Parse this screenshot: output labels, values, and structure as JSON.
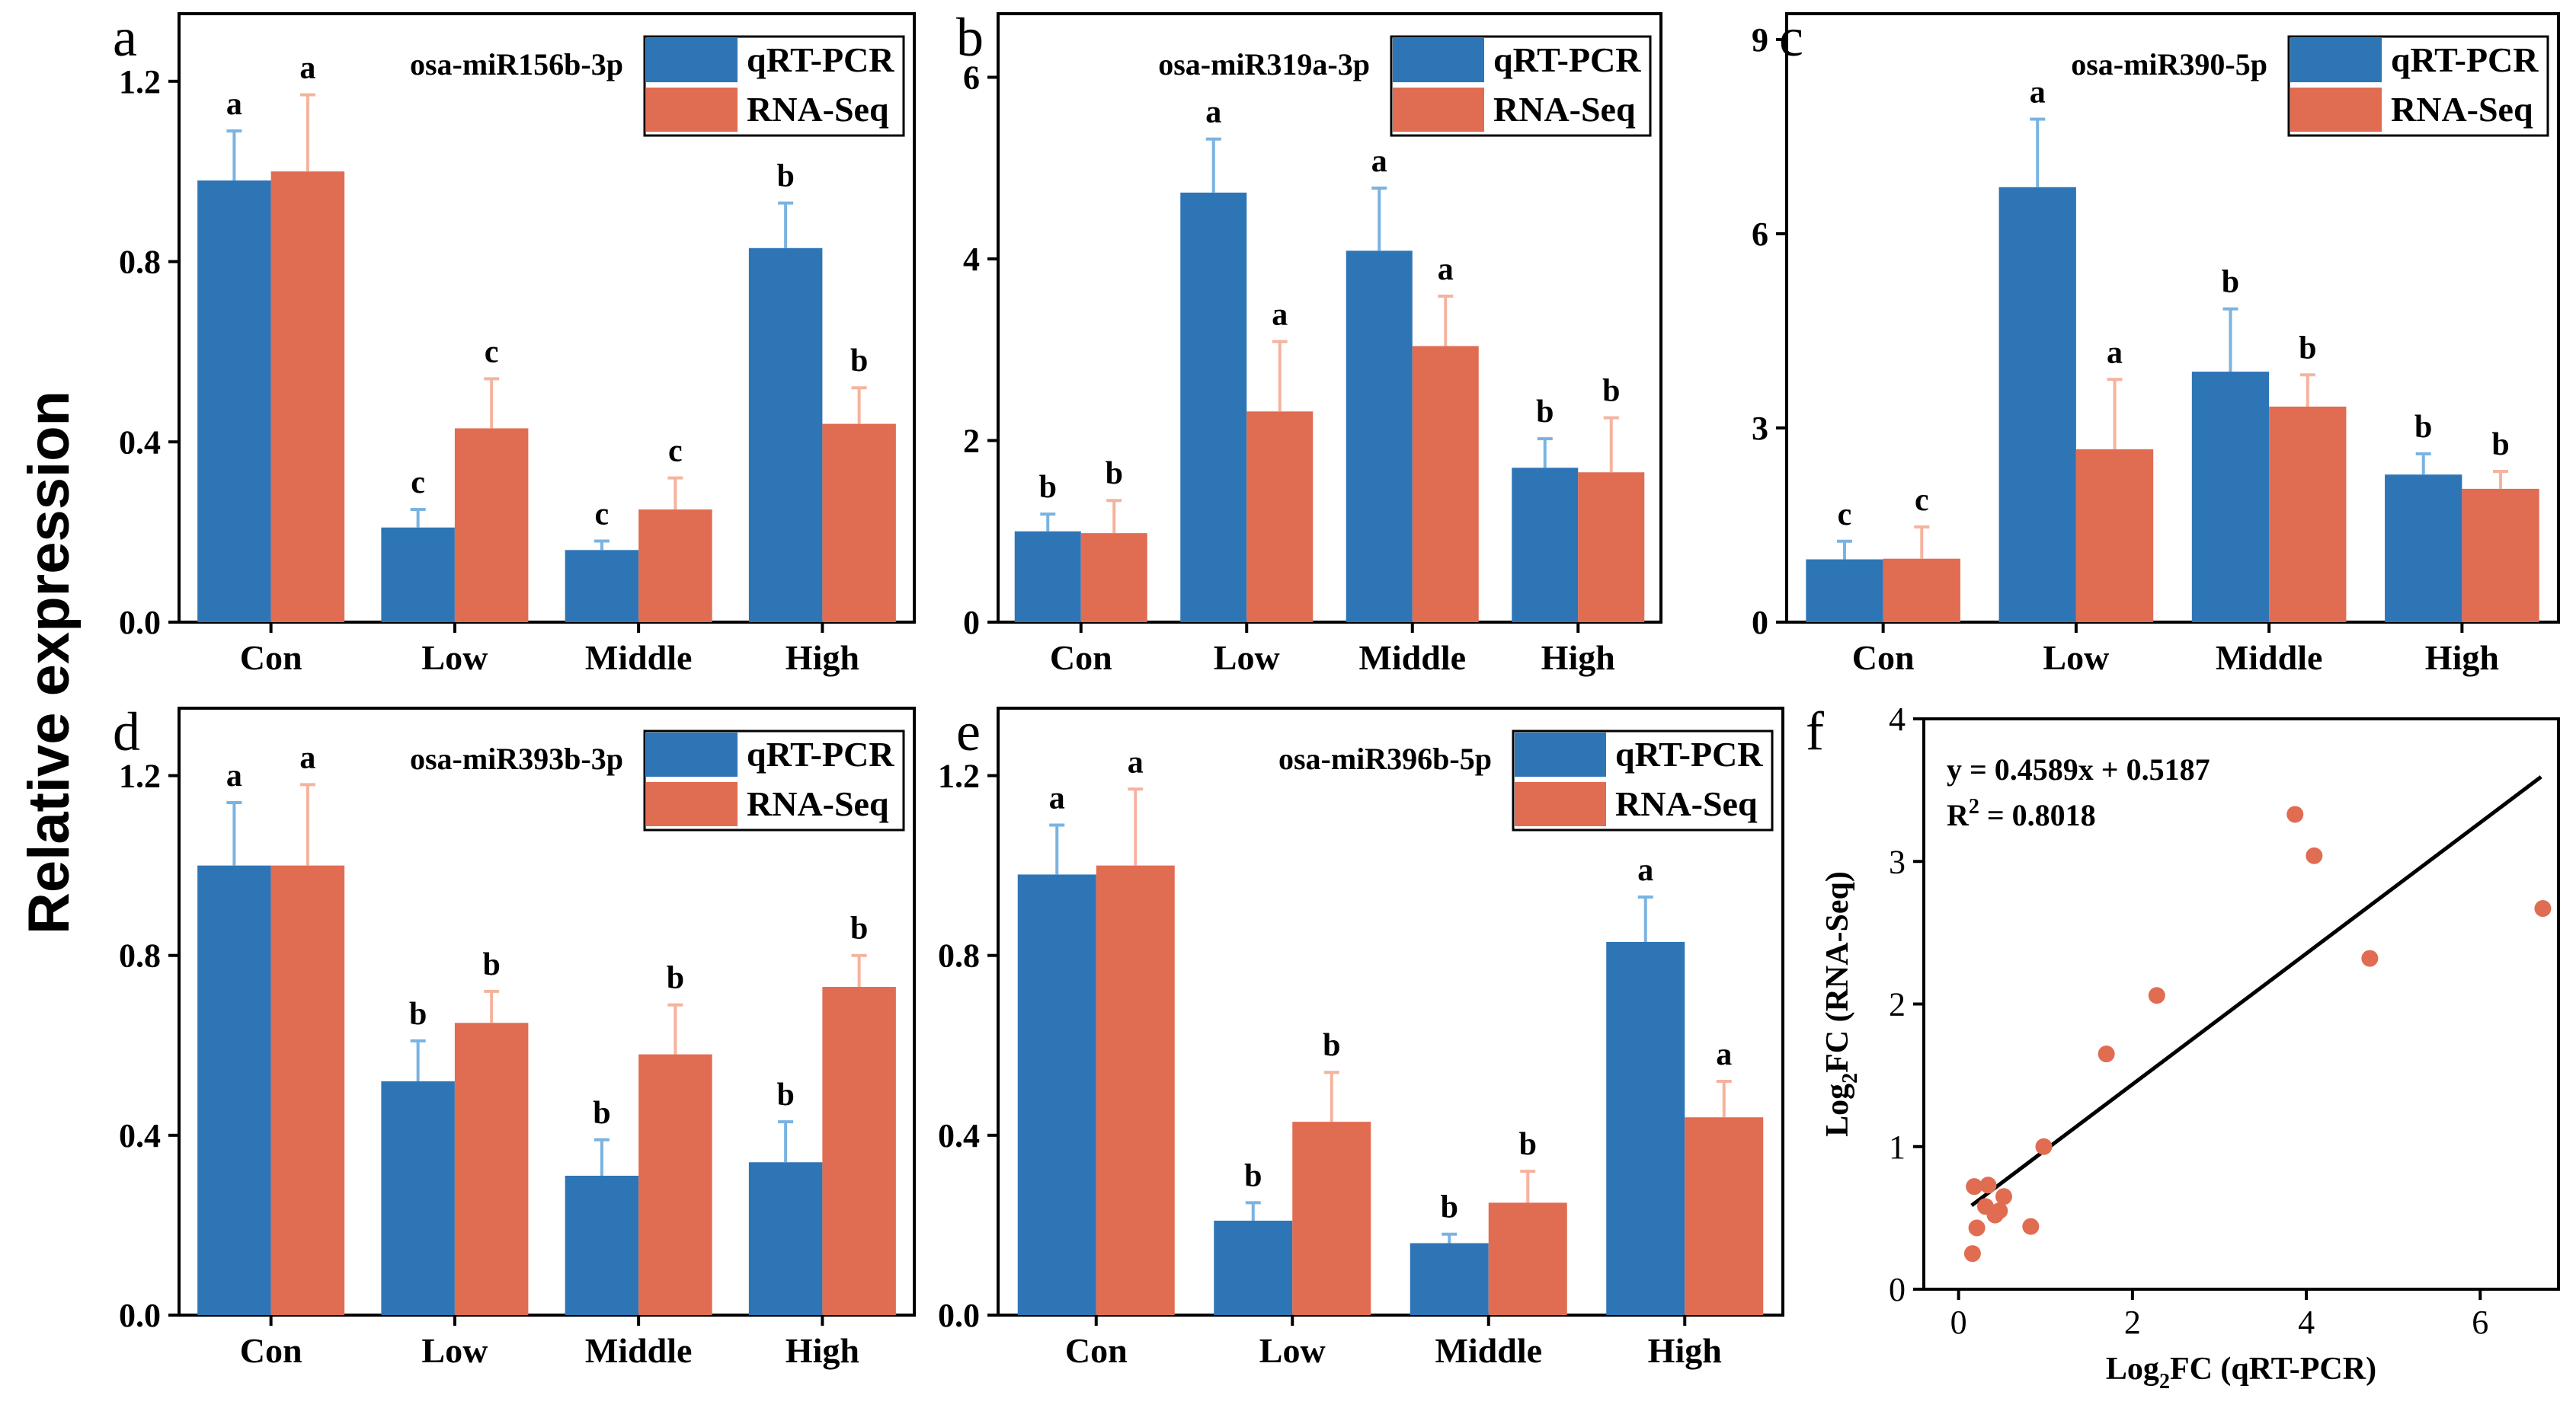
{
  "figure": {
    "ylabel": "Relative expression",
    "colors": {
      "qrt": "#2E75B6",
      "rna": "#E06C52",
      "qrt_err": "#7AB3E0",
      "rna_err": "#F5B39E",
      "axis": "#000000"
    }
  },
  "chart_data": [
    {
      "id": "a",
      "type": "bar",
      "panel_label": "a",
      "title": "osa-miR156b-3p",
      "categories": [
        "Con",
        "Low",
        "Middle",
        "High"
      ],
      "ylim": [
        0,
        1.35
      ],
      "yticks": [
        0.0,
        0.4,
        0.8,
        1.2
      ],
      "ytick_labels": [
        "0.0",
        "0.4",
        "0.8",
        "1.2"
      ],
      "legend": [
        "qRT-PCR",
        "RNA-Seq"
      ],
      "legend_position": "top-right",
      "series": [
        {
          "name": "qRT-PCR",
          "values": [
            0.98,
            0.21,
            0.16,
            0.83
          ],
          "errors": [
            0.11,
            0.04,
            0.02,
            0.1
          ],
          "labels": [
            "a",
            "c",
            "c",
            "b"
          ]
        },
        {
          "name": "RNA-Seq",
          "values": [
            1.0,
            0.43,
            0.25,
            0.44
          ],
          "errors": [
            0.17,
            0.11,
            0.07,
            0.08
          ],
          "labels": [
            "a",
            "c",
            "c",
            "b"
          ]
        }
      ]
    },
    {
      "id": "b",
      "type": "bar",
      "panel_label": "b",
      "title": "osa-miR319a-3p",
      "categories": [
        "Con",
        "Low",
        "Middle",
        "High"
      ],
      "ylim": [
        0,
        6.7
      ],
      "yticks": [
        0,
        2,
        4,
        6
      ],
      "ytick_labels": [
        "0",
        "2",
        "4",
        "6"
      ],
      "legend": [
        "qRT-PCR",
        "RNA-Seq"
      ],
      "legend_position": "top-right",
      "series": [
        {
          "name": "qRT-PCR",
          "values": [
            1.0,
            4.73,
            4.09,
            1.7
          ],
          "errors": [
            0.19,
            0.59,
            0.69,
            0.32
          ],
          "labels": [
            "b",
            "a",
            "a",
            "b"
          ]
        },
        {
          "name": "RNA-Seq",
          "values": [
            0.98,
            2.32,
            3.04,
            1.65
          ],
          "errors": [
            0.36,
            0.77,
            0.55,
            0.6
          ],
          "labels": [
            "b",
            "a",
            "a",
            "b"
          ]
        }
      ]
    },
    {
      "id": "c",
      "type": "bar",
      "panel_label": "c",
      "title": "osa-miR390-5p",
      "categories": [
        "Con",
        "Low",
        "Middle",
        "High"
      ],
      "ylim": [
        0,
        9.4
      ],
      "yticks": [
        0,
        3,
        6,
        9
      ],
      "ytick_labels": [
        "0",
        "3",
        "6",
        "9"
      ],
      "legend": [
        "qRT-PCR",
        "RNA-Seq"
      ],
      "legend_position": "top-right",
      "series": [
        {
          "name": "qRT-PCR",
          "values": [
            0.97,
            6.72,
            3.87,
            2.28
          ],
          "errors": [
            0.28,
            1.05,
            0.97,
            0.32
          ],
          "labels": [
            "c",
            "a",
            "b",
            "b"
          ]
        },
        {
          "name": "RNA-Seq",
          "values": [
            0.98,
            2.67,
            3.33,
            2.06
          ],
          "errors": [
            0.49,
            1.08,
            0.49,
            0.27
          ],
          "labels": [
            "c",
            "a",
            "b",
            "b"
          ]
        }
      ]
    },
    {
      "id": "d",
      "type": "bar",
      "panel_label": "d",
      "title": "osa-miR393b-3p",
      "categories": [
        "Con",
        "Low",
        "Middle",
        "High"
      ],
      "ylim": [
        0,
        1.35
      ],
      "yticks": [
        0.0,
        0.4,
        0.8,
        1.2
      ],
      "ytick_labels": [
        "0.0",
        "0.4",
        "0.8",
        "1.2"
      ],
      "legend": [
        "qRT-PCR",
        "RNA-Seq"
      ],
      "legend_position": "top-right",
      "series": [
        {
          "name": "qRT-PCR",
          "values": [
            1.0,
            0.52,
            0.31,
            0.34
          ],
          "errors": [
            0.14,
            0.09,
            0.08,
            0.09
          ],
          "labels": [
            "a",
            "b",
            "b",
            "b"
          ]
        },
        {
          "name": "RNA-Seq",
          "values": [
            1.0,
            0.65,
            0.58,
            0.73
          ],
          "errors": [
            0.18,
            0.07,
            0.11,
            0.07
          ],
          "labels": [
            "a",
            "b",
            "b",
            "b"
          ]
        }
      ]
    },
    {
      "id": "e",
      "type": "bar",
      "panel_label": "e",
      "title": "osa-miR396b-5p",
      "categories": [
        "Con",
        "Low",
        "Middle",
        "High"
      ],
      "ylim": [
        0,
        1.35
      ],
      "yticks": [
        0.0,
        0.4,
        0.8,
        1.2
      ],
      "ytick_labels": [
        "0.0",
        "0.4",
        "0.8",
        "1.2"
      ],
      "legend": [
        "qRT-PCR",
        "RNA-Seq"
      ],
      "legend_position": "top-right",
      "series": [
        {
          "name": "qRT-PCR",
          "values": [
            0.98,
            0.21,
            0.16,
            0.83
          ],
          "errors": [
            0.11,
            0.04,
            0.02,
            0.1
          ],
          "labels": [
            "a",
            "b",
            "b",
            "a"
          ]
        },
        {
          "name": "RNA-Seq",
          "values": [
            1.0,
            0.43,
            0.25,
            0.44
          ],
          "errors": [
            0.17,
            0.11,
            0.07,
            0.08
          ],
          "labels": [
            "a",
            "b",
            "b",
            "a"
          ]
        }
      ]
    },
    {
      "id": "f",
      "type": "scatter",
      "panel_label": "f",
      "xlabel_parts": [
        "Log",
        "2",
        "FC (qRT-PCR)"
      ],
      "ylabel_parts": [
        "Log",
        "2",
        "FC (RNA-Seq)"
      ],
      "xlim": [
        -0.4,
        6.9
      ],
      "ylim": [
        0,
        4
      ],
      "xticks": [
        0,
        2,
        4,
        6
      ],
      "xtick_labels": [
        "0",
        "2",
        "4",
        "6"
      ],
      "yticks": [
        0,
        1,
        2,
        3,
        4
      ],
      "ytick_labels": [
        "0",
        "1",
        "2",
        "3",
        "4"
      ],
      "equation": "y = 0.4589x + 0.5187",
      "r2_label": "R",
      "r2_sup": "2",
      "r2_value": " = 0.8018",
      "fit": {
        "slope": 0.4589,
        "intercept": 0.5187,
        "x_range": [
          0.15,
          6.7
        ]
      },
      "points": [
        {
          "x": 0.98,
          "y": 1.0
        },
        {
          "x": 0.16,
          "y": 0.25
        },
        {
          "x": 0.21,
          "y": 0.43
        },
        {
          "x": 0.83,
          "y": 0.44
        },
        {
          "x": 0.52,
          "y": 0.65
        },
        {
          "x": 0.31,
          "y": 0.58
        },
        {
          "x": 0.34,
          "y": 0.73
        },
        {
          "x": 0.18,
          "y": 0.72
        },
        {
          "x": 0.42,
          "y": 0.52
        },
        {
          "x": 0.47,
          "y": 0.55
        },
        {
          "x": 1.7,
          "y": 1.65
        },
        {
          "x": 2.28,
          "y": 2.06
        },
        {
          "x": 3.87,
          "y": 3.33
        },
        {
          "x": 4.09,
          "y": 3.04
        },
        {
          "x": 4.73,
          "y": 2.32
        },
        {
          "x": 6.72,
          "y": 2.67
        }
      ]
    }
  ]
}
